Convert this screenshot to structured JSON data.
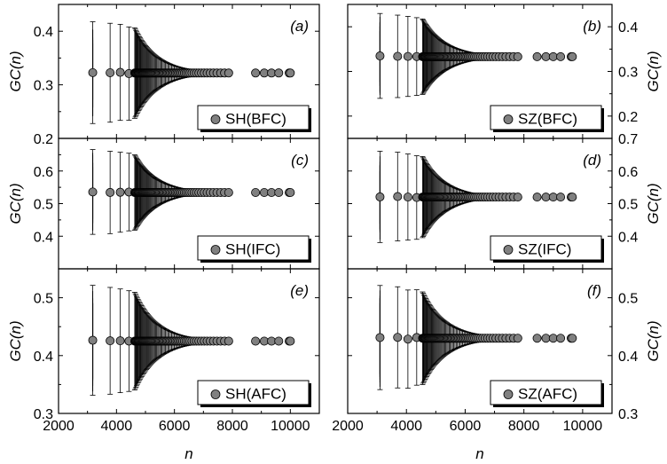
{
  "colors": {
    "marker_fill": "#808080",
    "marker_stroke": "#000000",
    "frame": "#000000",
    "legend_shadow": "#000000"
  },
  "chart_data": [
    {
      "type": "scatter",
      "panel": "(a)",
      "legend": "SH(BFC)",
      "ylabel": "GC(n)",
      "ylabel_side": "left",
      "xlabel": "",
      "xlim": [
        2000,
        11000
      ],
      "ylim": [
        0.2,
        0.45
      ],
      "xticks": [
        2000,
        4000,
        6000,
        8000,
        10000
      ],
      "xtick_labels_shown": false,
      "yticks": [
        0.2,
        0.3,
        0.4
      ],
      "ytick_labels": [
        "0.2",
        "0.3",
        "0.4"
      ],
      "legend_position": "bottom-right",
      "error_bars": true,
      "n_min": 3180,
      "n_max": 10000,
      "y_center": 0.322,
      "first_error": 0.095,
      "last_error": 0.0025
    },
    {
      "type": "scatter",
      "panel": "(b)",
      "legend": "SZ(BFC)",
      "ylabel": "GC(n)",
      "ylabel_side": "right",
      "xlabel": "",
      "xlim": [
        2000,
        11000
      ],
      "ylim": [
        0.15,
        0.45
      ],
      "xticks": [
        2000,
        4000,
        6000,
        8000,
        10000
      ],
      "xtick_labels_shown": false,
      "yticks": [
        0.2,
        0.3,
        0.4
      ],
      "ytick_labels": [
        "0.2",
        "0.3",
        "0.4"
      ],
      "legend_position": "bottom-right",
      "error_bars": true,
      "n_min": 3100,
      "n_max": 9650,
      "y_center": 0.333,
      "first_error": 0.095,
      "last_error": 0.0025
    },
    {
      "type": "scatter",
      "panel": "(c)",
      "legend": "SH(IFC)",
      "ylabel": "GC(n)",
      "ylabel_side": "left",
      "xlabel": "",
      "xlim": [
        2000,
        11000
      ],
      "ylim": [
        0.3,
        0.7
      ],
      "xticks": [
        2000,
        4000,
        6000,
        8000,
        10000
      ],
      "xtick_labels_shown": false,
      "yticks": [
        0.4,
        0.5,
        0.6
      ],
      "ytick_labels": [
        "0.4",
        "0.5",
        "0.6"
      ],
      "legend_position": "bottom-right",
      "error_bars": true,
      "n_min": 3180,
      "n_max": 10000,
      "y_center": 0.534,
      "first_error": 0.13,
      "last_error": 0.0025
    },
    {
      "type": "scatter",
      "panel": "(d)",
      "legend": "SZ(IFC)",
      "ylabel": "GC(n)",
      "ylabel_side": "right",
      "xlabel": "",
      "xlim": [
        2000,
        11000
      ],
      "ylim": [
        0.3,
        0.7
      ],
      "xticks": [
        2000,
        4000,
        6000,
        8000,
        10000
      ],
      "xtick_labels_shown": false,
      "yticks": [
        0.4,
        0.5,
        0.6,
        0.7
      ],
      "ytick_labels": [
        "0.4",
        "0.5",
        "0.6",
        "0.7"
      ],
      "legend_position": "bottom-right",
      "error_bars": true,
      "n_min": 3100,
      "n_max": 9650,
      "y_center": 0.52,
      "first_error": 0.14,
      "last_error": 0.0025
    },
    {
      "type": "scatter",
      "panel": "(e)",
      "legend": "SH(AFC)",
      "ylabel": "GC(n)",
      "ylabel_side": "left",
      "xlabel": "n",
      "xlim": [
        2000,
        11000
      ],
      "ylim": [
        0.3,
        0.55
      ],
      "xticks": [
        2000,
        4000,
        6000,
        8000,
        10000
      ],
      "xtick_labels_shown": true,
      "xtick_labels": [
        "2000",
        "4000",
        "6000",
        "8000",
        "10000"
      ],
      "yticks": [
        0.3,
        0.4,
        0.5
      ],
      "ytick_labels": [
        "0.3",
        "0.4",
        "0.5"
      ],
      "legend_position": "bottom-right",
      "error_bars": true,
      "n_min": 3180,
      "n_max": 10000,
      "y_center": 0.425,
      "first_error": 0.095,
      "last_error": 0.0025
    },
    {
      "type": "scatter",
      "panel": "(f)",
      "legend": "SZ(AFC)",
      "ylabel": "GC(n)",
      "ylabel_side": "right",
      "xlabel": "n",
      "xlim": [
        2000,
        11000
      ],
      "ylim": [
        0.3,
        0.55
      ],
      "xticks": [
        2000,
        4000,
        6000,
        8000,
        10000
      ],
      "xtick_labels_shown": true,
      "xtick_labels": [
        "2000",
        "4000",
        "6000",
        "8000",
        "10000"
      ],
      "yticks": [
        0.3,
        0.4,
        0.5
      ],
      "ytick_labels": [
        "0.3",
        "0.4",
        "0.5"
      ],
      "legend_position": "bottom-right",
      "error_bars": true,
      "n_min": 3100,
      "n_max": 9650,
      "y_center": 0.43,
      "first_error": 0.09,
      "last_error": 0.0025
    }
  ]
}
